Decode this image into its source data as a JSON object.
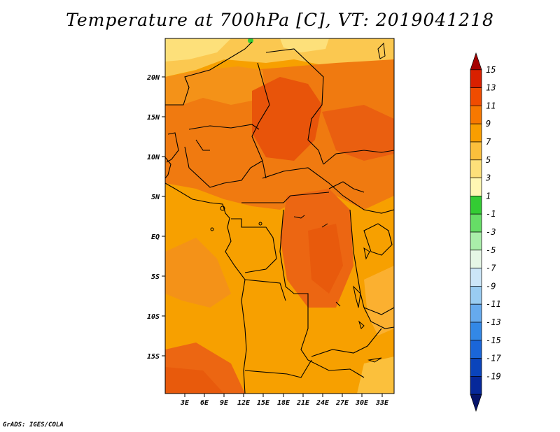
{
  "title": "Temperature at 700hPa [C], VT: 2019041218",
  "credit": "GrADS: IGES/COLA",
  "map": {
    "lat_labels": [
      "20N",
      "15N",
      "10N",
      "5N",
      "EQ",
      "5S",
      "10S",
      "15S"
    ],
    "lon_labels": [
      "3E",
      "6E",
      "9E",
      "12E",
      "15E",
      "18E",
      "21E",
      "24E",
      "27E",
      "30E",
      "33E"
    ]
  },
  "colorbar": {
    "labels": [
      "15",
      "13",
      "11",
      "9",
      "7",
      "5",
      "3",
      "1",
      "-1",
      "-3",
      "-5",
      "-7",
      "-9",
      "-11",
      "-13",
      "-15",
      "-17",
      "-19"
    ],
    "colors": [
      "#a50000",
      "#d92000",
      "#f04c00",
      "#f77800",
      "#f99e00",
      "#fbbf3c",
      "#fde07a",
      "#fff7b3",
      "#33cc33",
      "#66dd66",
      "#aaeeaa",
      "#e6f6e6",
      "#cce6f8",
      "#99ccf2",
      "#66aaee",
      "#3388e6",
      "#1a66d9",
      "#0a44bb",
      "#06289a",
      "#06146b"
    ]
  }
}
